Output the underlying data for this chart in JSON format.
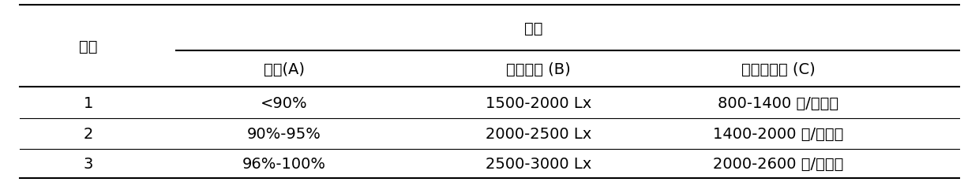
{
  "col0_header": "水平",
  "factor_header": "因素",
  "subheaders": [
    "湿度(A)",
    "膜下光照 (B)",
    "扦插苗密度 (C)"
  ],
  "rows": [
    [
      "1",
      "<90%",
      "1500-2000 Lx",
      "800-1400 株/平方米"
    ],
    [
      "2",
      "90%-95%",
      "2000-2500 Lx",
      "1400-2000 株/平方米"
    ],
    [
      "3",
      "96%-100%",
      "2500-3000 Lx",
      "2000-2600 株/平方米"
    ]
  ],
  "background_color": "#ffffff",
  "text_color": "#000000",
  "font_size": 14
}
